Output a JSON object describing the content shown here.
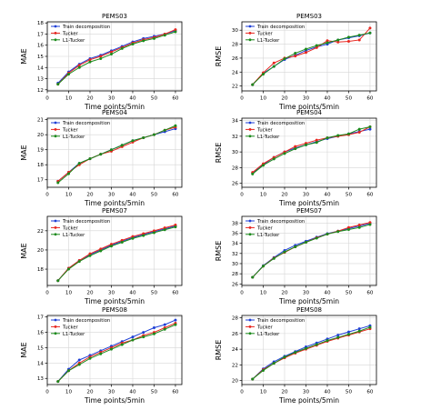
{
  "colors": {
    "train_decomposition": "#1f3fd6",
    "tucker": "#e8261f",
    "l1_tucker": "#1c8a1c",
    "grid": "#d6d6d6",
    "axis": "#000000"
  },
  "chart_data": [
    {
      "type": "line",
      "title": "PEMS03",
      "xlabel": "Time points/5min",
      "ylabel": "MAE",
      "x": [
        5,
        10,
        15,
        20,
        25,
        30,
        35,
        40,
        45,
        50,
        55,
        60
      ],
      "xticks": [
        0,
        10,
        20,
        30,
        40,
        50,
        60
      ],
      "yticks": [
        12,
        13,
        14,
        15,
        16,
        17,
        18
      ],
      "xlim": [
        0,
        63
      ],
      "ylim": [
        11.9,
        18.1
      ],
      "grid": true,
      "legend": "top-left",
      "series": [
        {
          "name": "Train decomposition",
          "values": [
            12.6,
            13.6,
            14.3,
            14.8,
            15.1,
            15.5,
            15.9,
            16.3,
            16.6,
            16.8,
            17.0,
            17.3
          ]
        },
        {
          "name": "Tucker",
          "values": [
            12.5,
            13.5,
            14.2,
            14.7,
            15.0,
            15.4,
            15.8,
            16.2,
            16.5,
            16.7,
            17.0,
            17.4
          ]
        },
        {
          "name": "L1-Tucker",
          "values": [
            12.5,
            13.4,
            14.0,
            14.5,
            14.8,
            15.2,
            15.7,
            16.1,
            16.4,
            16.6,
            16.9,
            17.2
          ]
        }
      ]
    },
    {
      "type": "line",
      "title": "PEMS03",
      "xlabel": "Time points/5min",
      "ylabel": "RMSE",
      "x": [
        5,
        10,
        15,
        20,
        25,
        30,
        35,
        40,
        45,
        50,
        55,
        60
      ],
      "xticks": [
        0,
        10,
        20,
        30,
        40,
        50,
        60
      ],
      "yticks": [
        22,
        24,
        26,
        28,
        30
      ],
      "xlim": [
        0,
        63
      ],
      "ylim": [
        21.3,
        31.2
      ],
      "grid": true,
      "legend": "top-left",
      "series": [
        {
          "name": "Train decomposition",
          "values": [
            22.2,
            23.8,
            24.8,
            25.8,
            26.4,
            27.1,
            27.6,
            28.0,
            28.6,
            28.9,
            29.2,
            29.6
          ]
        },
        {
          "name": "Tucker",
          "values": [
            22.2,
            23.9,
            25.3,
            26.0,
            26.3,
            26.8,
            27.5,
            28.5,
            28.3,
            28.4,
            28.6,
            30.3
          ]
        },
        {
          "name": "L1-Tucker",
          "values": [
            22.2,
            23.7,
            24.8,
            25.9,
            26.7,
            27.3,
            27.8,
            28.2,
            28.6,
            29.0,
            29.3,
            29.6
          ]
        }
      ]
    },
    {
      "type": "line",
      "title": "PEMS04",
      "xlabel": "Time points/5min",
      "ylabel": "MAE",
      "x": [
        5,
        10,
        15,
        20,
        25,
        30,
        35,
        40,
        45,
        50,
        55,
        60
      ],
      "xticks": [
        0,
        10,
        20,
        30,
        40,
        50,
        60
      ],
      "yticks": [
        17,
        18,
        19,
        20,
        21
      ],
      "xlim": [
        0,
        63
      ],
      "ylim": [
        16.5,
        21.1
      ],
      "grid": true,
      "legend": "top-left",
      "series": [
        {
          "name": "Train decomposition",
          "values": [
            16.9,
            17.5,
            18.1,
            18.4,
            18.7,
            19.0,
            19.3,
            19.6,
            19.8,
            20.0,
            20.2,
            20.4
          ]
        },
        {
          "name": "Tucker",
          "values": [
            16.9,
            17.5,
            18.0,
            18.4,
            18.7,
            18.9,
            19.2,
            19.5,
            19.8,
            20.0,
            20.3,
            20.5
          ]
        },
        {
          "name": "L1-Tucker",
          "values": [
            16.8,
            17.4,
            18.1,
            18.4,
            18.7,
            19.0,
            19.3,
            19.6,
            19.8,
            20.0,
            20.3,
            20.6
          ]
        }
      ]
    },
    {
      "type": "line",
      "title": "PEMS04",
      "xlabel": "Time points/5min",
      "ylabel": "RMSE",
      "x": [
        5,
        10,
        15,
        20,
        25,
        30,
        35,
        40,
        45,
        50,
        55,
        60
      ],
      "xticks": [
        0,
        10,
        20,
        30,
        40,
        50,
        60
      ],
      "yticks": [
        26,
        28,
        30,
        32,
        34
      ],
      "xlim": [
        0,
        63
      ],
      "ylim": [
        25.5,
        34.3
      ],
      "grid": true,
      "legend": "top-left",
      "series": [
        {
          "name": "Train decomposition",
          "values": [
            27.3,
            28.4,
            29.3,
            30.0,
            30.5,
            30.9,
            31.3,
            31.7,
            32.0,
            32.3,
            32.6,
            32.9
          ]
        },
        {
          "name": "Tucker",
          "values": [
            27.4,
            28.5,
            29.3,
            30.0,
            30.7,
            31.1,
            31.5,
            31.8,
            32.0,
            32.2,
            32.5,
            33.2
          ]
        },
        {
          "name": "L1-Tucker",
          "values": [
            27.2,
            28.3,
            29.1,
            29.8,
            30.4,
            30.9,
            31.2,
            31.8,
            32.1,
            32.3,
            32.9,
            33.2
          ]
        }
      ]
    },
    {
      "type": "line",
      "title": "PEMS07",
      "xlabel": "Time points/5min",
      "ylabel": "MAE",
      "x": [
        5,
        10,
        15,
        20,
        25,
        30,
        35,
        40,
        45,
        50,
        55,
        60
      ],
      "xticks": [
        0,
        10,
        20,
        30,
        40,
        50,
        60
      ],
      "yticks": [
        18,
        20,
        22
      ],
      "xlim": [
        0,
        63
      ],
      "ylim": [
        16.3,
        23.5
      ],
      "grid": true,
      "legend": "top-left",
      "series": [
        {
          "name": "Train decomposition",
          "values": [
            16.8,
            18.1,
            18.9,
            19.5,
            20.0,
            20.5,
            20.9,
            21.3,
            21.6,
            21.9,
            22.2,
            22.5
          ]
        },
        {
          "name": "Tucker",
          "values": [
            16.8,
            18.1,
            18.9,
            19.6,
            20.1,
            20.6,
            21.0,
            21.4,
            21.7,
            22.0,
            22.3,
            22.6
          ]
        },
        {
          "name": "L1-Tucker",
          "values": [
            16.8,
            18.0,
            18.8,
            19.4,
            19.9,
            20.4,
            20.8,
            21.2,
            21.5,
            21.8,
            22.1,
            22.4
          ]
        }
      ]
    },
    {
      "type": "line",
      "title": "PEMS07",
      "xlabel": "Time points/5min",
      "ylabel": "RMSE",
      "x": [
        5,
        10,
        15,
        20,
        25,
        30,
        35,
        40,
        45,
        50,
        55,
        60
      ],
      "xticks": [
        0,
        10,
        20,
        30,
        40,
        50,
        60
      ],
      "yticks": [
        26,
        28,
        30,
        32,
        34,
        36,
        38
      ],
      "xlim": [
        0,
        63
      ],
      "ylim": [
        25.7,
        39.3
      ],
      "grid": true,
      "legend": "top-left",
      "series": [
        {
          "name": "Train decomposition",
          "values": [
            27.3,
            29.6,
            31.2,
            32.6,
            33.6,
            34.4,
            35.2,
            35.9,
            36.4,
            36.9,
            37.4,
            37.9
          ]
        },
        {
          "name": "Tucker",
          "values": [
            27.3,
            29.5,
            31.1,
            32.2,
            33.3,
            34.2,
            35.1,
            35.8,
            36.4,
            37.1,
            37.6,
            38.1
          ]
        },
        {
          "name": "L1-Tucker",
          "values": [
            27.3,
            29.5,
            31.0,
            32.3,
            33.3,
            34.2,
            35.0,
            35.8,
            36.3,
            36.7,
            37.1,
            37.7
          ]
        }
      ]
    },
    {
      "type": "line",
      "title": "PEMS08",
      "xlabel": "Time points/5min",
      "ylabel": "MAE",
      "x": [
        5,
        10,
        15,
        20,
        25,
        30,
        35,
        40,
        45,
        50,
        55,
        60
      ],
      "xticks": [
        0,
        10,
        20,
        30,
        40,
        50,
        60
      ],
      "yticks": [
        13,
        14,
        15,
        16,
        17
      ],
      "xlim": [
        0,
        63
      ],
      "ylim": [
        12.6,
        17.1
      ],
      "grid": true,
      "legend": "top-left",
      "series": [
        {
          "name": "Train decomposition",
          "values": [
            12.8,
            13.6,
            14.2,
            14.5,
            14.8,
            15.1,
            15.4,
            15.7,
            16.0,
            16.3,
            16.5,
            16.8
          ]
        },
        {
          "name": "Tucker",
          "values": [
            12.8,
            13.5,
            14.0,
            14.4,
            14.7,
            15.0,
            15.3,
            15.5,
            15.8,
            16.0,
            16.3,
            16.6
          ]
        },
        {
          "name": "L1-Tucker",
          "values": [
            12.8,
            13.5,
            13.9,
            14.3,
            14.6,
            14.9,
            15.2,
            15.5,
            15.7,
            15.9,
            16.2,
            16.5
          ]
        }
      ]
    },
    {
      "type": "line",
      "title": "PEMS08",
      "xlabel": "Time points/5min",
      "ylabel": "RMSE",
      "x": [
        5,
        10,
        15,
        20,
        25,
        30,
        35,
        40,
        45,
        50,
        55,
        60
      ],
      "xticks": [
        0,
        10,
        20,
        30,
        40,
        50,
        60
      ],
      "yticks": [
        20,
        22,
        24,
        26,
        28
      ],
      "xlim": [
        0,
        63
      ],
      "ylim": [
        19.5,
        28.3
      ],
      "grid": true,
      "legend": "top-left",
      "series": [
        {
          "name": "Train decomposition",
          "values": [
            20.2,
            21.5,
            22.4,
            23.1,
            23.7,
            24.3,
            24.8,
            25.3,
            25.8,
            26.2,
            26.6,
            27.0
          ]
        },
        {
          "name": "Tucker",
          "values": [
            20.2,
            21.4,
            22.2,
            22.9,
            23.5,
            24.0,
            24.5,
            25.0,
            25.4,
            25.8,
            26.2,
            26.6
          ]
        },
        {
          "name": "L1-Tucker",
          "values": [
            20.2,
            21.3,
            22.2,
            23.0,
            23.6,
            24.1,
            24.6,
            25.1,
            25.5,
            25.9,
            26.3,
            26.8
          ]
        }
      ]
    }
  ]
}
